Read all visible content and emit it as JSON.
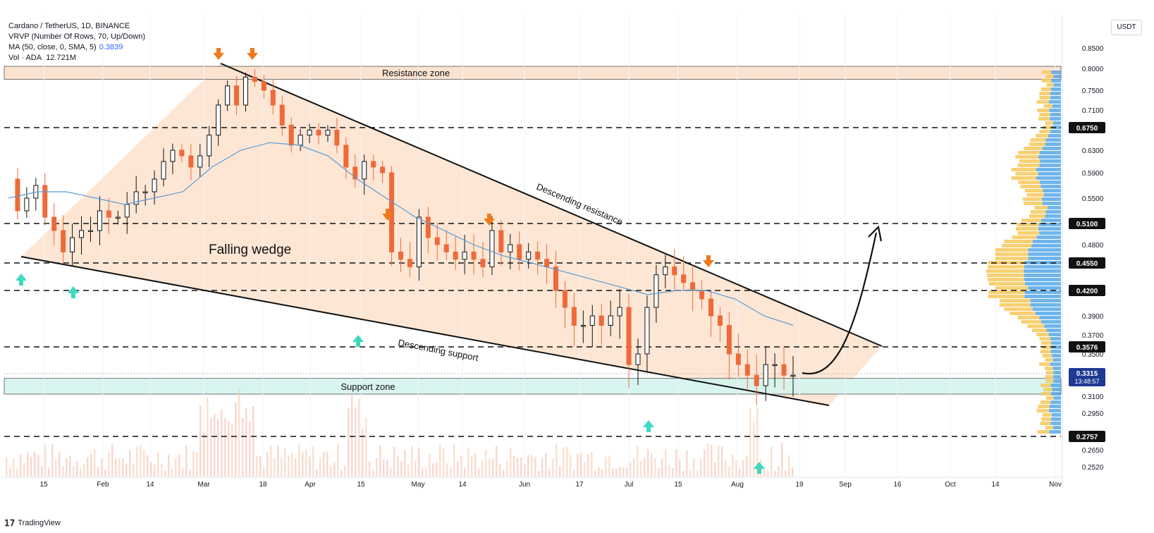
{
  "legend": {
    "symbol": "Cardano / TetherUS, 1D, BINANCE",
    "vrvp": "VRVP (Number Of Rows, 70, Up/Down)",
    "ma_label": "MA (50, close, 0, SMA, 5)",
    "ma_value": "0.3839",
    "vol_label": "Vol · ADA",
    "vol_value": "12.721M"
  },
  "currency": "USDT",
  "brand": {
    "logo": "𝟣𝟩",
    "name": "TradingView"
  },
  "chart_data": {
    "type": "candlestick",
    "price_scale": [
      0.85,
      0.8,
      0.75,
      0.71,
      0.675,
      0.63,
      0.59,
      0.55,
      0.51,
      0.48,
      0.455,
      0.42,
      0.39,
      0.37,
      0.3576,
      0.35,
      0.3315,
      0.31,
      0.295,
      0.2757,
      0.265,
      0.252
    ],
    "y_ticks": [
      "0.8500",
      "0.8000",
      "0.7500",
      "0.7100",
      "0.6300",
      "0.5900",
      "0.5500",
      "0.4800",
      "0.3900",
      "0.3700",
      "0.3500",
      "0.3100",
      "0.2950",
      "0.2650",
      "0.2520"
    ],
    "highlighted_levels": [
      {
        "label": "0.6750",
        "value": 0.675
      },
      {
        "label": "0.5100",
        "value": 0.51
      },
      {
        "label": "0.4550",
        "value": 0.455
      },
      {
        "label": "0.4200",
        "value": 0.42
      },
      {
        "label": "0.3576",
        "value": 0.3576
      },
      {
        "label": "0.2757",
        "value": 0.2757
      }
    ],
    "current_price": {
      "label": "0.3315",
      "value": 0.3315,
      "countdown": "13:48:57"
    },
    "x_labels": [
      "15",
      "Feb",
      "14",
      "Mar",
      "18",
      "Apr",
      "15",
      "May",
      "14",
      "Jun",
      "17",
      "Jul",
      "15",
      "Aug",
      "19",
      "Sep",
      "16",
      "Oct",
      "14",
      "Nov"
    ],
    "zones": [
      {
        "name": "Resistance zone",
        "low": 0.775,
        "high": 0.805
      },
      {
        "name": "Support zone",
        "low": 0.312,
        "high": 0.327
      }
    ],
    "annotations": [
      "Falling wedge",
      "Descending resistance",
      "Descending support"
    ],
    "series": [
      {
        "name": "Price",
        "values": [
          0.58,
          0.53,
          0.55,
          0.57,
          0.52,
          0.5,
          0.47,
          0.49,
          0.5,
          0.5,
          0.53,
          0.52,
          0.52,
          0.54,
          0.56,
          0.56,
          0.58,
          0.61,
          0.63,
          0.62,
          0.6,
          0.62,
          0.66,
          0.72,
          0.76,
          0.72,
          0.78,
          0.77,
          0.75,
          0.72,
          0.68,
          0.64,
          0.66,
          0.67,
          0.66,
          0.67,
          0.64,
          0.6,
          0.58,
          0.61,
          0.6,
          0.59,
          0.47,
          0.46,
          0.45,
          0.52,
          0.49,
          0.48,
          0.47,
          0.46,
          0.47,
          0.46,
          0.45,
          0.5,
          0.47,
          0.48,
          0.46,
          0.47,
          0.46,
          0.45,
          0.42,
          0.4,
          0.38,
          0.38,
          0.39,
          0.38,
          0.39,
          0.4,
          0.34,
          0.35,
          0.4,
          0.44,
          0.45,
          0.44,
          0.43,
          0.42,
          0.41,
          0.39,
          0.38,
          0.35,
          0.34,
          0.33,
          0.32,
          0.34,
          0.34,
          0.33,
          0.33
        ]
      },
      {
        "name": "MA (50, close, 0, SMA, 5)",
        "values": [
          0.55,
          0.56,
          0.56,
          0.55,
          0.54,
          0.55,
          0.56,
          0.6,
          0.63,
          0.645,
          0.64,
          0.62,
          0.58,
          0.55,
          0.52,
          0.5,
          0.48,
          0.465,
          0.455,
          0.445,
          0.435,
          0.425,
          0.415,
          0.42,
          0.42,
          0.41,
          0.39,
          0.38
        ]
      }
    ]
  }
}
